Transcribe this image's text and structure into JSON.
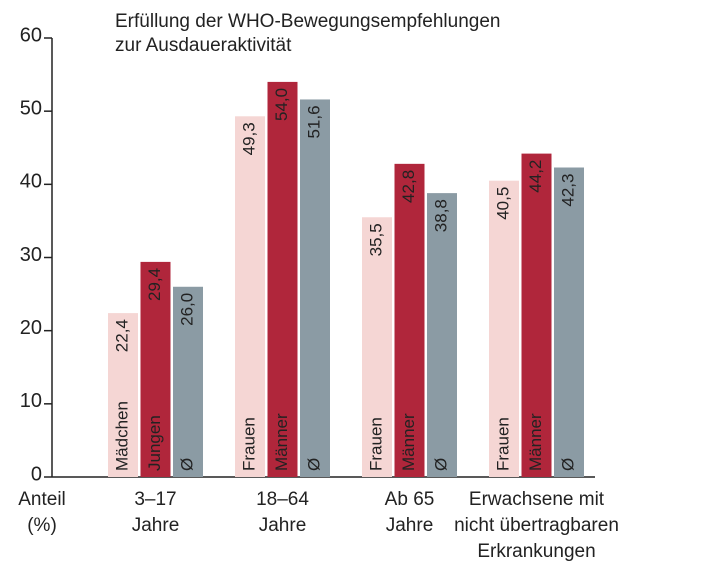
{
  "chart_data": {
    "type": "bar",
    "title": [
      "Erfüllung der WHO-Bewegungsempfehlungen",
      "zur Ausdaueraktivität"
    ],
    "y_label": [
      "Anteil",
      "(%)"
    ],
    "categories": [
      [
        "3–17",
        "Jahre"
      ],
      [
        "18–64",
        "Jahre"
      ],
      [
        "Ab 65",
        "Jahre"
      ],
      [
        "Erwachsene mit",
        "nicht übertragbaren",
        "Erkrankungen"
      ]
    ],
    "series": [
      {
        "bar_names": [
          "Mädchen",
          "Frauen",
          "Frauen",
          "Frauen"
        ],
        "color": "#f5d6d4",
        "text_color": "#222222",
        "values": [
          22.4,
          49.3,
          35.5,
          40.5
        ],
        "value_labels": [
          "22,4",
          "49,3",
          "35,5",
          "40,5"
        ]
      },
      {
        "bar_names": [
          "Jungen",
          "Männer",
          "Männer",
          "Männer"
        ],
        "color": "#b0263b",
        "text_color": "#ffffff",
        "values": [
          29.4,
          54.0,
          42.8,
          44.2
        ],
        "value_labels": [
          "29,4",
          "54,0",
          "42,8",
          "44,2"
        ]
      },
      {
        "bar_names": [
          "Ø",
          "Ø",
          "Ø",
          "Ø"
        ],
        "color": "#8b9ba4",
        "text_color": "#ffffff",
        "values": [
          26.0,
          51.6,
          38.8,
          42.3
        ],
        "value_labels": [
          "26,0",
          "51,6",
          "38,8",
          "42,3"
        ]
      }
    ],
    "ylim": [
      0,
      60
    ],
    "yticks": [
      0,
      10,
      20,
      30,
      40,
      50,
      60
    ]
  }
}
